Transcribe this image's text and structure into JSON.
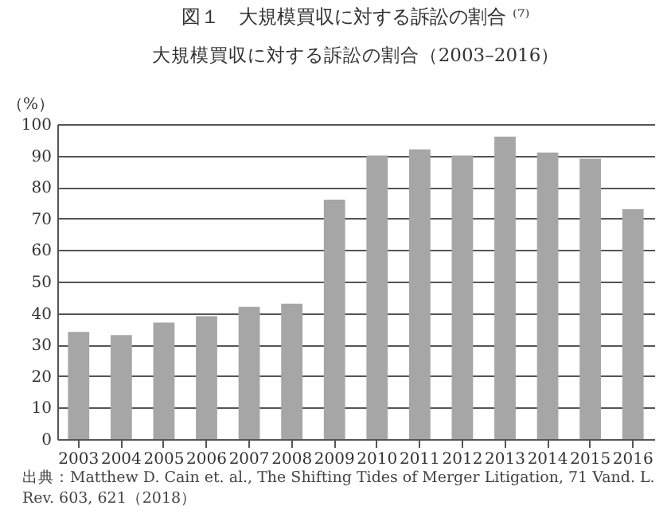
{
  "chart_data": {
    "type": "bar",
    "title": "図１　大規模買収に対する訴訟の割合 ⁽⁷⁾",
    "subtitle": "大規模買収に対する訴訟の割合（2003–2016）",
    "ylabel": "（%）",
    "categories": [
      "2003",
      "2004",
      "2005",
      "2006",
      "2007",
      "2008",
      "2009",
      "2010",
      "2011",
      "2012",
      "2013",
      "2014",
      "2015",
      "2016"
    ],
    "values": [
      34,
      33,
      37,
      39,
      42,
      43,
      76,
      90,
      92,
      90,
      96,
      91,
      89,
      73
    ],
    "color": "#a6a6a6",
    "ylim": [
      0,
      100
    ],
    "yticks": [
      0,
      10,
      20,
      30,
      40,
      50,
      60,
      70,
      80,
      90,
      100
    ],
    "grid": "y",
    "annotations": [
      "出典：Matthew D. Cain et. al., The Shifting Tides of Merger Litigation, 71 Vand. L. Rev. 603, 621（2018）"
    ]
  }
}
